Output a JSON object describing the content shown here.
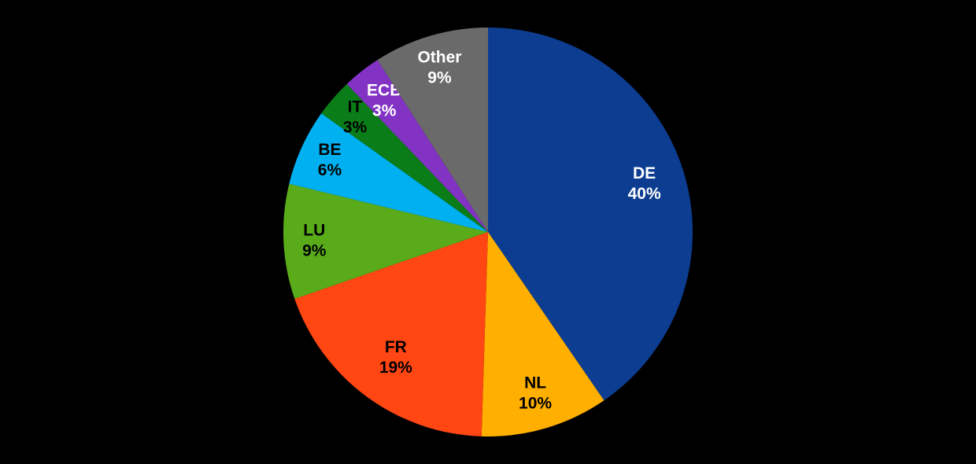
{
  "chart_data": {
    "type": "pie",
    "background": "#000000",
    "start_angle_deg": -90,
    "direction": "clockwise",
    "legend": "none",
    "slices": [
      {
        "label": "DE",
        "percent": 40,
        "display": "40%",
        "color": "#0d3d91",
        "text_color": "#ffffff",
        "label_radius": 0.8
      },
      {
        "label": "NL",
        "percent": 10,
        "display": "10%",
        "color": "#ffaf00",
        "text_color": "#000000",
        "label_radius": 0.82
      },
      {
        "label": "FR",
        "percent": 19,
        "display": "19%",
        "color": "#ff4613",
        "text_color": "#000000",
        "label_radius": 0.76
      },
      {
        "label": "LU",
        "percent": 9,
        "display": "9%",
        "color": "#5aab1a",
        "text_color": "#000000",
        "label_radius": 0.85
      },
      {
        "label": "BE",
        "percent": 6,
        "display": "6%",
        "color": "#00b0f0",
        "text_color": "#000000",
        "label_radius": 0.85
      },
      {
        "label": "IT",
        "percent": 3,
        "display": "3%",
        "color": "#0a7d19",
        "text_color": "#000000",
        "label_radius": 0.86
      },
      {
        "label": "ECB",
        "percent": 3,
        "display": "3%",
        "color": "#8333c4",
        "text_color": "#ffffff",
        "label_radius": 0.82
      },
      {
        "label": "Other",
        "percent": 9,
        "display": "9%",
        "color": "#6a6a6a",
        "text_color": "#ffffff",
        "label_radius": 0.84
      }
    ]
  }
}
